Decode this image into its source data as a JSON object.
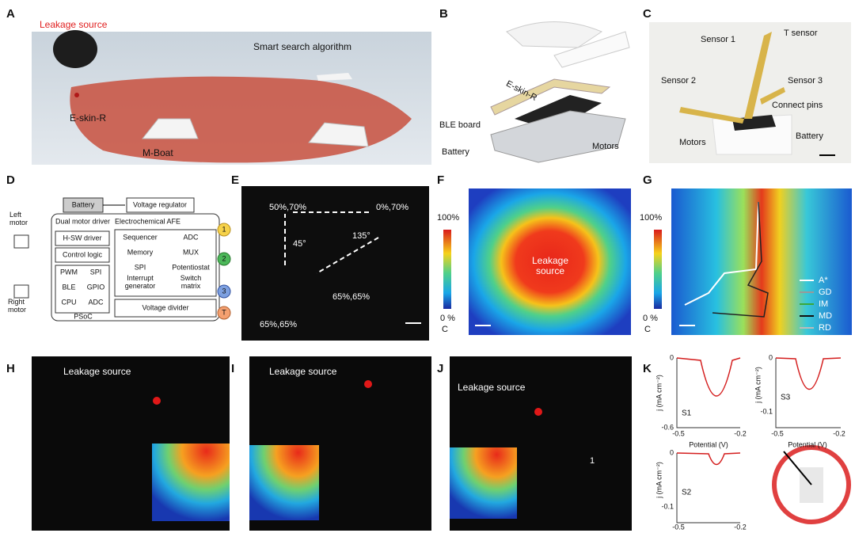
{
  "panels": {
    "A": {
      "label": "A",
      "leakage_source": "Leakage source",
      "algorithm": "Smart search algorithm",
      "eskin": "E-skin-R",
      "boat": "M-Boat"
    },
    "B": {
      "label": "B",
      "eskin": "E-skin-R",
      "ble_board": "BLE board",
      "battery": "Battery",
      "motors": "Motors"
    },
    "C": {
      "label": "C",
      "sensor1": "Sensor 1",
      "t_sensor": "T sensor",
      "sensor2": "Sensor 2",
      "sensor3": "Sensor 3",
      "connect_pins": "Connect pins",
      "motors": "Motors",
      "battery": "Battery"
    },
    "D": {
      "label": "D",
      "battery": "Battery",
      "regulator": "Voltage regulator",
      "left_motor": "Left motor",
      "right_motor": "Right motor",
      "motor_driver": "Dual motor driver",
      "hsw_driver": "H-SW driver",
      "control_logic": "Control logic",
      "psoc_blocks": [
        "PWM",
        "SPI",
        "BLE",
        "GPIO",
        "CPU",
        "ADC"
      ],
      "psoc": "PSoC",
      "afe": "Electrochemical AFE",
      "afe_blocks": [
        "Sequencer",
        "ADC",
        "Memory",
        "MUX",
        "SPI",
        "Potentiostat",
        "Interrupt generator",
        "Switch matrix"
      ],
      "voltage_divider": "Voltage divider",
      "channels": [
        "1",
        "2",
        "3",
        "T"
      ]
    },
    "E": {
      "label": "E",
      "points": [
        "50%,70%",
        "0%,70%",
        "65%,65%",
        "65%,65%"
      ],
      "angles": [
        "45°",
        "135°"
      ]
    },
    "F": {
      "label": "F",
      "scale_max": "100%",
      "scale_min": "0 %",
      "scale_unit": "C",
      "source": "Leakage source"
    },
    "G": {
      "label": "G",
      "scale_max": "100%",
      "scale_min": "0 %",
      "scale_unit": "C",
      "legend": [
        "A*",
        "GD",
        "IM",
        "MD",
        "RD"
      ]
    },
    "H": {
      "label": "H",
      "source": "Leakage source"
    },
    "I": {
      "label": "I",
      "source": "Leakage source"
    },
    "J": {
      "label": "J",
      "source": "Leakage source",
      "robot": "1"
    },
    "K": {
      "label": "K",
      "ylabel": "j (mA cm⁻²)",
      "xlabel": "Potential (V)",
      "plots": [
        {
          "name": "S1",
          "yticks": [
            "0",
            "-0.6"
          ],
          "xticks": [
            "-0.5",
            "-0.2"
          ]
        },
        {
          "name": "S3",
          "yticks": [
            "0",
            "-0.1"
          ],
          "xticks": [
            "-0.5",
            "-0.2"
          ]
        },
        {
          "name": "S2",
          "yticks": [
            "0",
            "-0.1"
          ],
          "xticks": [
            "-0.5",
            "-0.2"
          ]
        }
      ]
    }
  }
}
